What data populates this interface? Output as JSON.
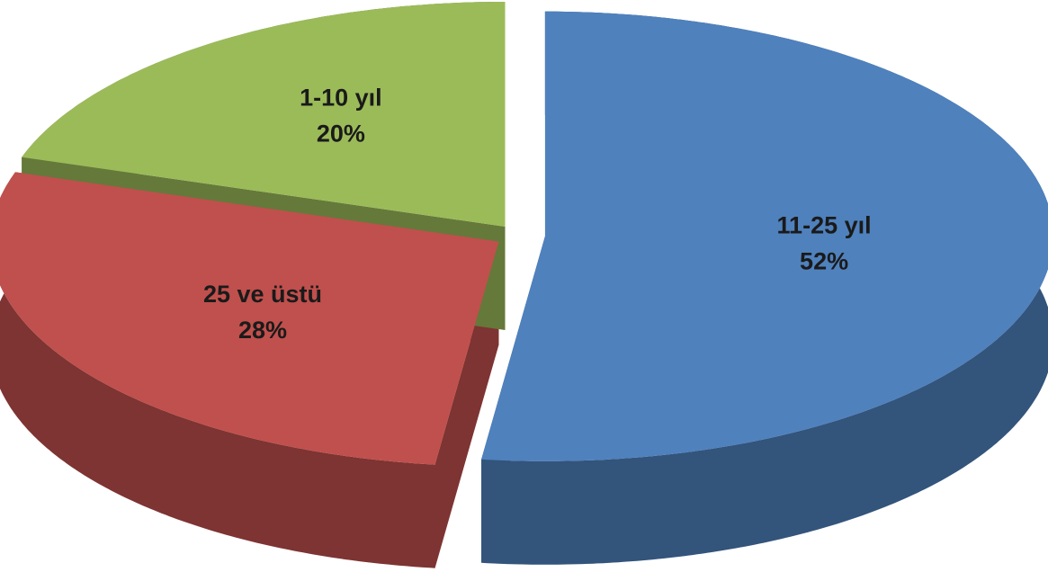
{
  "chart_data": {
    "type": "pie",
    "categories": [
      "11-25 yıl",
      "25 ve üstü",
      "1-10 yıl"
    ],
    "values": [
      52,
      28,
      20
    ],
    "value_labels": [
      "52%",
      "28%",
      "20%"
    ],
    "colors": [
      "#4f81bd",
      "#c0504d",
      "#9bbb59"
    ]
  }
}
